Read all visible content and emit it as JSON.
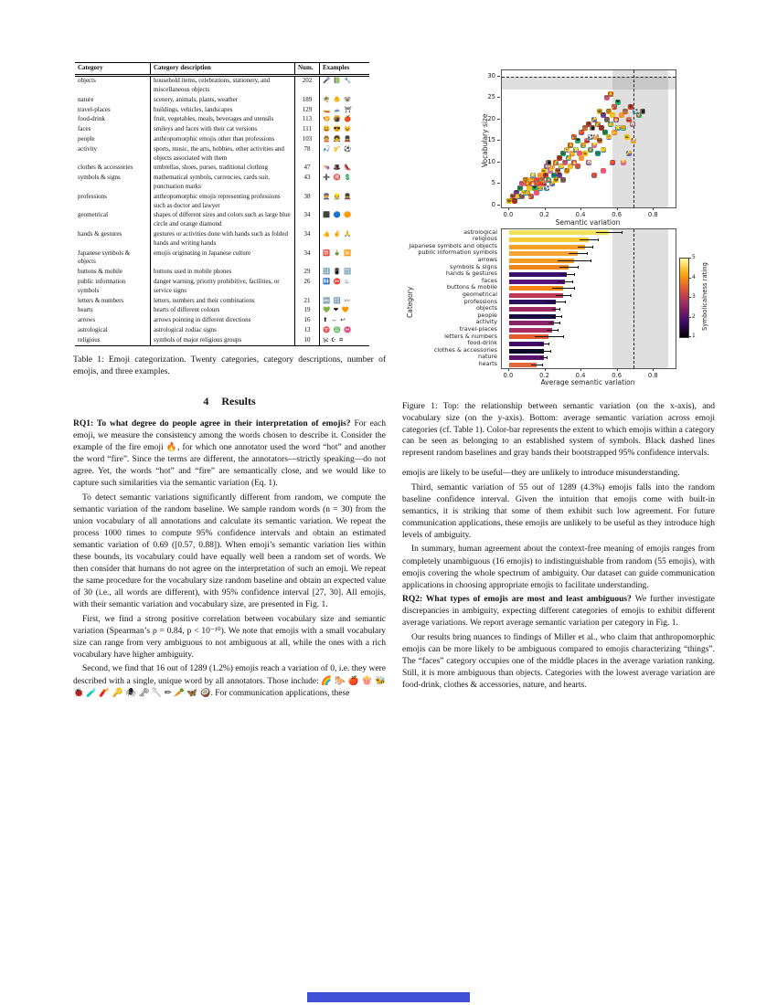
{
  "table": {
    "headers": [
      "Category",
      "Category description",
      "Num.",
      "Examples"
    ],
    "rows": [
      {
        "category": "objects",
        "description": "household items, celebrations, stationery, and miscellaneous objects",
        "num": "202",
        "examples": "🎤 📗 🔧"
      },
      {
        "category": "nature",
        "description": "scenery, animals, plants, weather",
        "num": "189",
        "examples": "🌴 🐥 🐨"
      },
      {
        "category": "travel-places",
        "description": "buildings, vehicles, landscapes",
        "num": "129",
        "examples": "🚤 🗻 ⛩"
      },
      {
        "category": "food-drink",
        "description": "fruit, vegetables, meals, beverages and utensils",
        "num": "113",
        "examples": "🍤 🍘 🍎"
      },
      {
        "category": "faces",
        "description": "smileys and faces with their cat versions",
        "num": "111",
        "examples": "😃 😎 😺"
      },
      {
        "category": "people",
        "description": "anthropomorphic emojis other than professions",
        "num": "103",
        "examples": "👲 👧 💂"
      },
      {
        "category": "activity",
        "description": "sports, music, the arts, hobbies, other activities and objects associated with them",
        "num": "78",
        "examples": "🎣 🎷 ⚽"
      },
      {
        "category": "clothes & accessories",
        "description": "umbrellas, shoes, purses, traditional clothing",
        "num": "47",
        "examples": "👒 🎩 👠"
      },
      {
        "category": "symbols & signs",
        "description": "mathematical symbols, currencies, cards suit, punctuation marks",
        "num": "43",
        "examples": "➕ 🉐 💲"
      },
      {
        "category": "professions",
        "description": "anthropomorphic emojis representing professions such as doctor and lawyer",
        "num": "38",
        "examples": "👮 👷 💂"
      },
      {
        "category": "geometrical",
        "description": "shapes of different sizes and colors such as large blue circle and orange diamond",
        "num": "34",
        "examples": "⬛ 🔵 🟠"
      },
      {
        "category": "hands & gestures",
        "description": "gestures or activities done with hands such as folded hands and writing hands",
        "num": "34",
        "examples": "👍 ✌ 🙏"
      },
      {
        "category": "Japanese symbols & objects",
        "description": "emojis originating in Japanese culture",
        "num": "34",
        "examples": "🈲 🎍 🈚"
      },
      {
        "category": "buttons & mobile",
        "description": "buttons used in mobile phones",
        "num": "29",
        "examples": "🔢 📳 🔡"
      },
      {
        "category": "public information symbols",
        "description": "danger warning, priority prohibitive, facilities, or service signs",
        "num": "26",
        "examples": "🚻 ⛔ ♨"
      },
      {
        "category": "letters & numbers",
        "description": "letters, numbers and their combinations",
        "num": "21",
        "examples": "🔤 🔡 〰"
      },
      {
        "category": "hearts",
        "description": "hearts of different colours",
        "num": "19",
        "examples": "💚 ❤ 🧡"
      },
      {
        "category": "arrows",
        "description": "arrows pointing in different directions",
        "num": "16",
        "examples": "⬆ ↔ ↩"
      },
      {
        "category": "astrological",
        "description": "astrological zodiac signs",
        "num": "13",
        "examples": "♈ ♎ ♓"
      },
      {
        "category": "religious",
        "description": "symbols of major religious groups",
        "num": "10",
        "examples": "🕉 ☪ ✡"
      }
    ],
    "caption": "Table 1: Emoji categorization. Twenty categories, category descriptions, number of emojis, and three examples."
  },
  "section": {
    "number": "4",
    "title": "Results"
  },
  "paragraphs": {
    "left": [
      {
        "lead": "RQ1: To what degree do people agree in their interpretation of emojis?",
        "text": "For each emoji, we measure the consistency among the words chosen to describe it. Consider the example of the fire emoji 🔥, for which one annotator used the word “hot” and another the word “fire”. Since the terms are different, the annotators—strictly speaking—do not agree. Yet, the words “hot” and “fire” are semantically close, and we would like to capture such similarities via the semantic variation (Eq. 1).",
        "indent": false
      },
      {
        "text": "To detect semantic variations significantly different from random, we compute the semantic variation of the random baseline. We sample random words (n = 30) from the union vocabulary of all annotations and calculate its semantic variation. We repeat the process 1000 times to compute 95% confidence intervals and obtain an estimated semantic variation of 0.69 ([0.57, 0.88]). When emoji’s semantic variation lies within these bounds, its vocabulary could have equally well been a random set of words. We then consider that humans do not agree on the interpretation of such an emoji. We repeat the same procedure for the vocabulary size random baseline and obtain an expected value of 30 (i.e., all words are different), with 95% confidence interval [27, 30]. All emojis, with their semantic variation and vocabulary size, are presented in Fig. 1.",
        "indent": true
      },
      {
        "text": "First, we find a strong positive correlation between vocabulary size and semantic variation (Spearman’s ρ = 0.84, p < 10⁻¹⁰). We note that emojis with a small vocabulary size can range from very ambiguous to not ambiguous at all, while the ones with a rich vocabulary have higher ambiguity.",
        "indent": true
      },
      {
        "text": "Second, we find that 16 out of 1289 (1.2%) emojis reach a variation of 0, i.e. they were described with a single, unique word by all annotators. Those include: 🌈 🐎 🍎 🍿 🐝 🐞 🧪 🧨 🔑 🕷 🗝 🥄 ✏ 🥕 🦋 🥥. For communication applications, these",
        "indent": true
      }
    ],
    "right": [
      {
        "text": "emojis are likely to be useful—they are unlikely to introduce misunderstanding.",
        "indent": false
      },
      {
        "text": "Third, semantic variation of 55 out of 1289 (4.3%) emojis falls into the random baseline confidence interval. Given the intuition that emojis come with built-in semantics, it is striking that some of them exhibit such low agreement. For future communication applications, these emojis are unlikely to be useful as they introduce high levels of ambiguity.",
        "indent": true
      },
      {
        "text": "In summary, human agreement about the context-free meaning of emojis ranges from completely unambiguous (16 emojis) to indistinguishable from random (55 emojis), with emojis covering the whole spectrum of ambiguity. Our dataset can guide communication applications in choosing appropriate emojis to facilitate understanding.",
        "indent": true
      },
      {
        "lead": "RQ2: What types of emojis are most and least ambiguous?",
        "text": "We further investigate discrepancies in ambiguity, expecting different categories of emojis to exhibit different average variations. We report average semantic variation per category in Fig. 1.",
        "indent": false
      },
      {
        "text": "Our results bring nuances to findings of Miller et al., who claim that anthropomorphic emojis can be more likely to be ambiguous compared to emojis characterizing “things”. The “faces” category occupies one of the middle places in the average variation ranking. Still, it is more ambiguous than objects. Categories with the lowest average variation are food-drink, clothes & accessories, nature, and hearts.",
        "indent": true
      }
    ]
  },
  "figure": {
    "caption": "Figure 1: Top: the relationship between semantic variation (on the x-axis), and vocabulary size (on the y-axis). Bottom: average semantic variation across emoji categories (cf. Table 1). Color-bar represents the extent to which emojis within a category can be seen as belonging to an established system of symbols. Black dashed lines represent random baselines and gray bands their bootstrapped 95% confidence intervals."
  },
  "chart_data": [
    {
      "type": "scatter",
      "xlabel": "Semantic variation",
      "ylabel": "Vocabulary size",
      "xlim": [
        -0.04,
        0.92
      ],
      "ylim": [
        -0.5,
        31.5
      ],
      "xticks": [
        0.0,
        0.2,
        0.4,
        0.6,
        0.8
      ],
      "yticks": [
        0,
        5,
        10,
        15,
        20,
        25,
        30
      ],
      "marker": "emoji",
      "random_baseline": {
        "semantic_variation": 0.69,
        "ci": [
          0.57,
          0.88
        ],
        "vocabulary_size": 30,
        "vocab_ci": [
          27,
          30
        ]
      },
      "emoji_pool": [
        "😀",
        "😂",
        "😍",
        "😎",
        "🤔",
        "😱",
        "🙃",
        "😴",
        "🤗",
        "😈",
        "👍",
        "🙏",
        "👏",
        "💪",
        "🎉",
        "🔥",
        "🌟",
        "❤",
        "💔",
        "💯",
        "🍎",
        "🍕",
        "🍔",
        "🍩",
        "☕",
        "🚗",
        "✈",
        "🏠",
        "⚽",
        "🎸",
        "📱",
        "💡",
        "🔑",
        "🐶",
        "🐱",
        "🌈"
      ],
      "marker_colors": [
        "#f4c20d",
        "#e8743b",
        "#c0392b",
        "#8e44ad",
        "#2e86c1",
        "#27ae60",
        "#8d6e63",
        "#f06292",
        "#5c6bc0",
        "#f39c12",
        "#16a085",
        "#d35400"
      ],
      "points": [
        [
          0.0,
          1
        ],
        [
          0.02,
          2
        ],
        [
          0.03,
          1
        ],
        [
          0.04,
          3
        ],
        [
          0.05,
          2
        ],
        [
          0.06,
          4
        ],
        [
          0.07,
          2
        ],
        [
          0.07,
          5
        ],
        [
          0.08,
          3
        ],
        [
          0.09,
          6
        ],
        [
          0.1,
          3
        ],
        [
          0.1,
          5
        ],
        [
          0.11,
          4
        ],
        [
          0.12,
          6
        ],
        [
          0.12,
          2
        ],
        [
          0.13,
          5
        ],
        [
          0.13,
          7
        ],
        [
          0.14,
          4
        ],
        [
          0.15,
          6
        ],
        [
          0.15,
          3
        ],
        [
          0.16,
          5
        ],
        [
          0.17,
          7
        ],
        [
          0.17,
          4
        ],
        [
          0.18,
          6
        ],
        [
          0.19,
          8
        ],
        [
          0.19,
          5
        ],
        [
          0.2,
          7
        ],
        [
          0.21,
          9
        ],
        [
          0.21,
          4
        ],
        [
          0.22,
          6
        ],
        [
          0.22,
          10
        ],
        [
          0.23,
          8
        ],
        [
          0.24,
          5
        ],
        [
          0.24,
          9
        ],
        [
          0.25,
          7
        ],
        [
          0.26,
          10
        ],
        [
          0.26,
          6
        ],
        [
          0.27,
          8
        ],
        [
          0.28,
          11
        ],
        [
          0.28,
          7
        ],
        [
          0.29,
          9
        ],
        [
          0.3,
          12
        ],
        [
          0.3,
          6
        ],
        [
          0.31,
          10
        ],
        [
          0.32,
          13
        ],
        [
          0.32,
          8
        ],
        [
          0.33,
          11
        ],
        [
          0.34,
          14
        ],
        [
          0.34,
          9
        ],
        [
          0.35,
          12
        ],
        [
          0.36,
          16
        ],
        [
          0.36,
          10
        ],
        [
          0.37,
          13
        ],
        [
          0.38,
          15
        ],
        [
          0.38,
          9
        ],
        [
          0.39,
          12
        ],
        [
          0.4,
          17
        ],
        [
          0.4,
          11
        ],
        [
          0.41,
          14
        ],
        [
          0.42,
          18
        ],
        [
          0.42,
          12
        ],
        [
          0.43,
          15
        ],
        [
          0.44,
          19
        ],
        [
          0.44,
          10
        ],
        [
          0.45,
          16
        ],
        [
          0.45,
          13
        ],
        [
          0.46,
          18
        ],
        [
          0.47,
          14
        ],
        [
          0.47,
          20
        ],
        [
          0.48,
          16
        ],
        [
          0.49,
          12
        ],
        [
          0.49,
          19
        ],
        [
          0.5,
          22
        ],
        [
          0.5,
          15
        ],
        [
          0.51,
          18
        ],
        [
          0.52,
          21
        ],
        [
          0.52,
          13
        ],
        [
          0.53,
          17
        ],
        [
          0.54,
          20
        ],
        [
          0.54,
          25
        ],
        [
          0.55,
          16
        ],
        [
          0.55,
          22
        ],
        [
          0.56,
          19
        ],
        [
          0.56,
          26
        ],
        [
          0.57,
          21
        ],
        [
          0.58,
          17
        ],
        [
          0.58,
          23
        ],
        [
          0.59,
          20
        ],
        [
          0.6,
          18
        ],
        [
          0.6,
          24
        ],
        [
          0.47,
          7
        ],
        [
          0.52,
          8
        ],
        [
          0.57,
          10
        ],
        [
          0.62,
          21
        ],
        [
          0.63,
          18
        ],
        [
          0.64,
          22
        ],
        [
          0.65,
          16
        ],
        [
          0.66,
          20
        ],
        [
          0.67,
          23
        ],
        [
          0.68,
          19
        ],
        [
          0.7,
          22
        ],
        [
          0.72,
          21
        ],
        [
          0.74,
          22
        ],
        [
          0.63,
          10
        ],
        [
          0.66,
          12
        ],
        [
          0.69,
          15
        ]
      ]
    },
    {
      "type": "bar",
      "orientation": "horizontal",
      "xlabel": "Average semantic variation",
      "ylabel": "Category",
      "xlim": [
        -0.04,
        0.92
      ],
      "xticks": [
        0.0,
        0.2,
        0.4,
        0.6,
        0.8
      ],
      "random_baseline": {
        "value": 0.69,
        "ci": [
          0.57,
          0.88
        ]
      },
      "colorbar": {
        "label": "Symbolicalness rating",
        "ticks": [
          1,
          2,
          3,
          4,
          5
        ],
        "colors": [
          "#000004",
          "#420a68",
          "#932667",
          "#dd513a",
          "#fca50a",
          "#fcffa4"
        ]
      },
      "bars": [
        {
          "category": "astrological",
          "value": 0.55,
          "error": 0.07,
          "symbolicalness": 4.9,
          "color": "#f1e15b"
        },
        {
          "category": "religious",
          "value": 0.44,
          "error": 0.05,
          "symbolicalness": 4.6,
          "color": "#f8cb35"
        },
        {
          "category": "Japanese symbols and objects",
          "value": 0.42,
          "error": 0.04,
          "symbolicalness": 4.1,
          "color": "#f7a028"
        },
        {
          "category": "public information symbols",
          "value": 0.38,
          "error": 0.05,
          "symbolicalness": 4.2,
          "color": "#f9a332"
        },
        {
          "category": "arrows",
          "value": 0.36,
          "error": 0.09,
          "symbolicalness": 4.1,
          "color": "#f69b21"
        },
        {
          "category": "symbols & signs",
          "value": 0.33,
          "error": 0.05,
          "symbolicalness": 3.9,
          "color": "#ef8315"
        },
        {
          "category": "hands & gestures",
          "value": 0.32,
          "error": 0.04,
          "symbolicalness": 1.6,
          "color": "#3b0f70"
        },
        {
          "category": "faces",
          "value": 0.31,
          "error": 0.04,
          "symbolicalness": 1.9,
          "color": "#57137e"
        },
        {
          "category": "buttons & mobile",
          "value": 0.3,
          "error": 0.06,
          "symbolicalness": 4.0,
          "color": "#f8860f"
        },
        {
          "category": "geometrical",
          "value": 0.3,
          "error": 0.04,
          "symbolicalness": 2.8,
          "color": "#bc3853"
        },
        {
          "category": "professions",
          "value": 0.26,
          "error": 0.05,
          "symbolicalness": 1.5,
          "color": "#2c1060"
        },
        {
          "category": "objects",
          "value": 0.26,
          "error": 0.02,
          "symbolicalness": 2.6,
          "color": "#9c2964"
        },
        {
          "category": "people",
          "value": 0.26,
          "error": 0.03,
          "symbolicalness": 1.2,
          "color": "#190c3e"
        },
        {
          "category": "activity",
          "value": 0.25,
          "error": 0.03,
          "symbolicalness": 2.3,
          "color": "#8c2369"
        },
        {
          "category": "travel-places",
          "value": 0.24,
          "error": 0.03,
          "symbolicalness": 2.5,
          "color": "#aa2e66"
        },
        {
          "category": "letters & numbers",
          "value": 0.22,
          "error": 0.08,
          "symbolicalness": 3.5,
          "color": "#e45b31"
        },
        {
          "category": "food-drink",
          "value": 0.19,
          "error": 0.03,
          "symbolicalness": 1.4,
          "color": "#450a69"
        },
        {
          "category": "clothes & accessories",
          "value": 0.19,
          "error": 0.04,
          "symbolicalness": 1.1,
          "color": "#0b0724"
        },
        {
          "category": "nature",
          "value": 0.19,
          "error": 0.02,
          "symbolicalness": 1.8,
          "color": "#5c126e"
        },
        {
          "category": "hearts",
          "value": 0.15,
          "error": 0.03,
          "symbolicalness": 3.6,
          "color": "#e4673c"
        }
      ]
    }
  ],
  "footer": {
    "bar_color": "#3e51d6"
  }
}
